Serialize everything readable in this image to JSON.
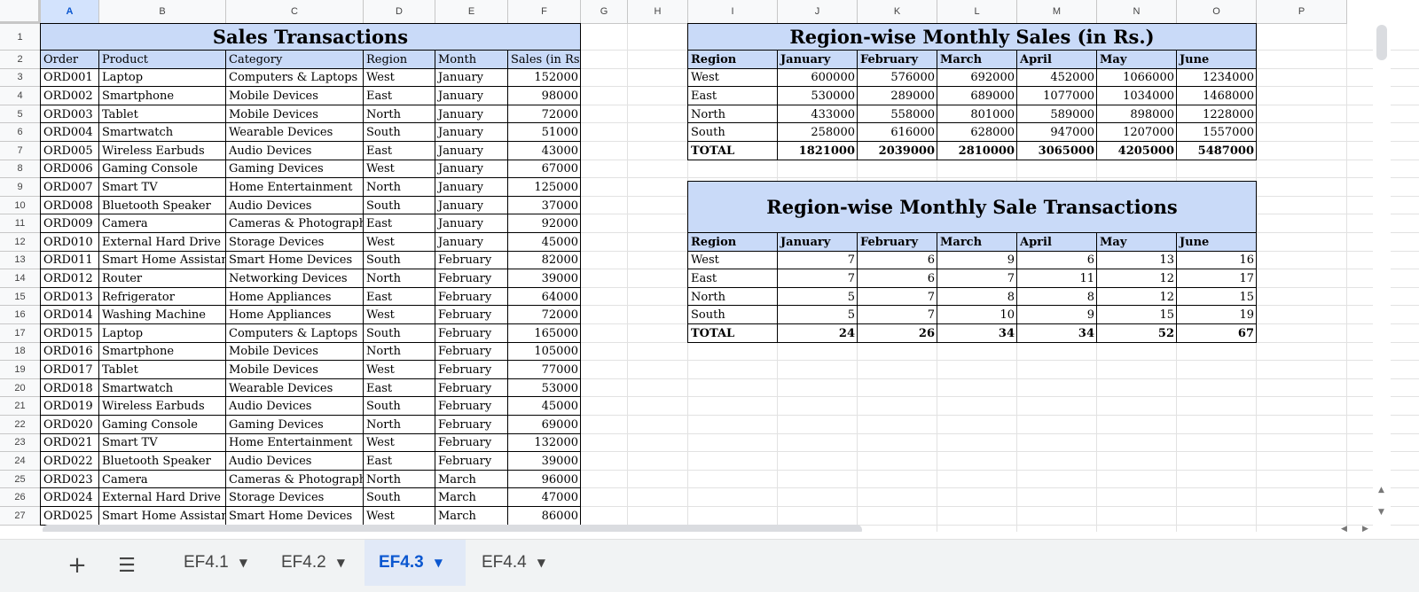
{
  "spreadsheet": {
    "columns": [
      "A",
      "B",
      "C",
      "D",
      "E",
      "F",
      "G",
      "H",
      "I",
      "J",
      "K",
      "L",
      "M",
      "N",
      "O",
      "P"
    ],
    "selected_column": "A",
    "rows": [
      "1",
      "2",
      "3",
      "4",
      "5",
      "6",
      "7",
      "8",
      "9",
      "10",
      "11",
      "12",
      "13",
      "14",
      "15",
      "16",
      "17",
      "18",
      "19",
      "20",
      "21",
      "22",
      "23",
      "24",
      "25",
      "26",
      "27"
    ]
  },
  "sales": {
    "title": "Sales Transactions",
    "headers": [
      "Order",
      "Product",
      "Category",
      "Region",
      "Month",
      "Sales (in Rs.)"
    ],
    "rows": [
      [
        "ORD001",
        "Laptop",
        "Computers & Laptops",
        "West",
        "January",
        "152000"
      ],
      [
        "ORD002",
        "Smartphone",
        "Mobile Devices",
        "East",
        "January",
        "98000"
      ],
      [
        "ORD003",
        "Tablet",
        "Mobile Devices",
        "North",
        "January",
        "72000"
      ],
      [
        "ORD004",
        "Smartwatch",
        "Wearable Devices",
        "South",
        "January",
        "51000"
      ],
      [
        "ORD005",
        "Wireless Earbuds",
        "Audio Devices",
        "East",
        "January",
        "43000"
      ],
      [
        "ORD006",
        "Gaming Console",
        "Gaming Devices",
        "West",
        "January",
        "67000"
      ],
      [
        "ORD007",
        "Smart TV",
        "Home Entertainment",
        "North",
        "January",
        "125000"
      ],
      [
        "ORD008",
        "Bluetooth Speaker",
        "Audio Devices",
        "South",
        "January",
        "37000"
      ],
      [
        "ORD009",
        "Camera",
        "Cameras & Photography",
        "East",
        "January",
        "92000"
      ],
      [
        "ORD010",
        "External Hard Drive",
        "Storage Devices",
        "West",
        "January",
        "45000"
      ],
      [
        "ORD011",
        "Smart Home Assistant",
        "Smart Home Devices",
        "South",
        "February",
        "82000"
      ],
      [
        "ORD012",
        "Router",
        "Networking Devices",
        "North",
        "February",
        "39000"
      ],
      [
        "ORD013",
        "Refrigerator",
        "Home Appliances",
        "East",
        "February",
        "64000"
      ],
      [
        "ORD014",
        "Washing Machine",
        "Home Appliances",
        "West",
        "February",
        "72000"
      ],
      [
        "ORD015",
        "Laptop",
        "Computers & Laptops",
        "South",
        "February",
        "165000"
      ],
      [
        "ORD016",
        "Smartphone",
        "Mobile Devices",
        "North",
        "February",
        "105000"
      ],
      [
        "ORD017",
        "Tablet",
        "Mobile Devices",
        "West",
        "February",
        "77000"
      ],
      [
        "ORD018",
        "Smartwatch",
        "Wearable Devices",
        "East",
        "February",
        "53000"
      ],
      [
        "ORD019",
        "Wireless Earbuds",
        "Audio Devices",
        "South",
        "February",
        "45000"
      ],
      [
        "ORD020",
        "Gaming Console",
        "Gaming Devices",
        "North",
        "February",
        "69000"
      ],
      [
        "ORD021",
        "Smart TV",
        "Home Entertainment",
        "West",
        "February",
        "132000"
      ],
      [
        "ORD022",
        "Bluetooth Speaker",
        "Audio Devices",
        "East",
        "February",
        "39000"
      ],
      [
        "ORD023",
        "Camera",
        "Cameras & Photography",
        "North",
        "March",
        "96000"
      ],
      [
        "ORD024",
        "External Hard Drive",
        "Storage Devices",
        "South",
        "March",
        "47000"
      ],
      [
        "ORD025",
        "Smart Home Assistant",
        "Smart Home Devices",
        "West",
        "March",
        "86000"
      ]
    ]
  },
  "summary_sales": {
    "title": "Region-wise Monthly Sales (in Rs.)",
    "headers": [
      "Region",
      "January",
      "February",
      "March",
      "April",
      "May",
      "June"
    ],
    "rows": [
      [
        "West",
        "600000",
        "576000",
        "692000",
        "452000",
        "1066000",
        "1234000"
      ],
      [
        "East",
        "530000",
        "289000",
        "689000",
        "1077000",
        "1034000",
        "1468000"
      ],
      [
        "North",
        "433000",
        "558000",
        "801000",
        "589000",
        "898000",
        "1228000"
      ],
      [
        "South",
        "258000",
        "616000",
        "628000",
        "947000",
        "1207000",
        "1557000"
      ]
    ],
    "total": [
      "TOTAL",
      "1821000",
      "2039000",
      "2810000",
      "3065000",
      "4205000",
      "5487000"
    ]
  },
  "summary_counts": {
    "title": "Region-wise Monthly Sale Transactions",
    "headers": [
      "Region",
      "January",
      "February",
      "March",
      "April",
      "May",
      "June"
    ],
    "rows": [
      [
        "West",
        "7",
        "6",
        "9",
        "6",
        "13",
        "16"
      ],
      [
        "East",
        "7",
        "6",
        "7",
        "11",
        "12",
        "17"
      ],
      [
        "North",
        "5",
        "7",
        "8",
        "8",
        "12",
        "15"
      ],
      [
        "South",
        "5",
        "7",
        "10",
        "9",
        "15",
        "19"
      ]
    ],
    "total": [
      "TOTAL",
      "24",
      "26",
      "34",
      "34",
      "52",
      "67"
    ]
  },
  "tabbar": {
    "add_icon": "+",
    "menu_icon": "☰",
    "tabs": [
      "EF4.1",
      "EF4.2",
      "EF4.3",
      "EF4.4"
    ],
    "active_tab": "EF4.3",
    "caret": "▼"
  },
  "scroll_arrows": {
    "up": "▲",
    "down": "▼",
    "left": "◀",
    "right": "▶"
  }
}
